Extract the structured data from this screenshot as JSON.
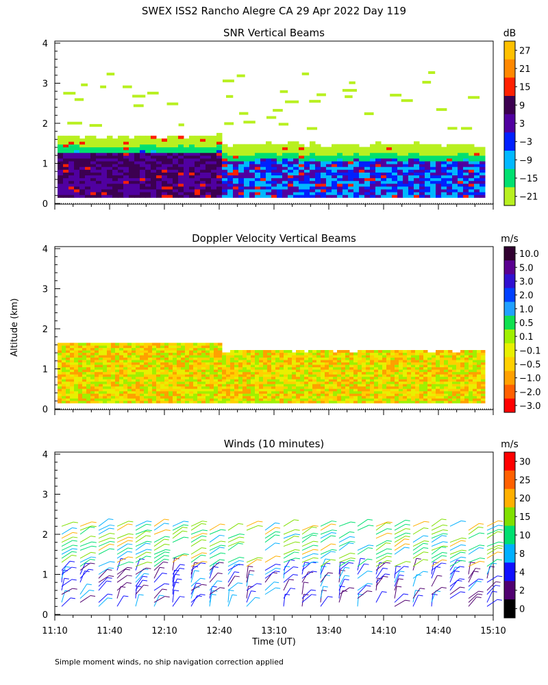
{
  "figure": {
    "title": "SWEX ISS2 Rancho Alegre CA  29 Apr 2022 Day 119",
    "ylabel": "Altitude (km)",
    "xlabel": "Time (UT)",
    "footnote": "Simple moment winds, no ship navigation correction applied"
  },
  "chart_data": [
    {
      "type": "heatmap",
      "title": "SNR Vertical Beams",
      "x_ticks": [
        "11:10",
        "11:40",
        "12:10",
        "12:40",
        "13:10",
        "13:40",
        "14:10",
        "14:40",
        "15:10"
      ],
      "y_ticks": [
        0,
        1,
        2,
        3,
        4
      ],
      "ylim": [
        0,
        4
      ],
      "colorbar": {
        "unit": "dB",
        "labels": [
          "27",
          "21",
          "15",
          "9",
          "3",
          "−3",
          "−9",
          "−15",
          "−21"
        ],
        "colors": [
          "#ffc000",
          "#ff8800",
          "#ff2000",
          "#3c0050",
          "#5000a0",
          "#0020ff",
          "#00b8ff",
          "#00e070",
          "#b8f020"
        ]
      }
    },
    {
      "type": "heatmap",
      "title": "Doppler Velocity Vertical Beams",
      "x_ticks": [
        "11:10",
        "11:40",
        "12:10",
        "12:40",
        "13:10",
        "13:40",
        "14:10",
        "14:40",
        "15:10"
      ],
      "y_ticks": [
        0,
        1,
        2,
        3,
        4
      ],
      "ylim": [
        0,
        4
      ],
      "colorbar": {
        "unit": "m/s",
        "labels": [
          "10.0",
          "5.0",
          "3.0",
          "2.0",
          "1.0",
          "0.5",
          "0.1",
          "−0.1",
          "−0.5",
          "−1.0",
          "−2.0",
          "−3.0"
        ],
        "colors": [
          "#300030",
          "#5a0090",
          "#3010d0",
          "#0040ff",
          "#20a0ff",
          "#10e050",
          "#a0f000",
          "#e8f000",
          "#ffd000",
          "#ffa000",
          "#ff6000",
          "#ff0000"
        ]
      }
    },
    {
      "type": "barbs",
      "title": "Winds (10 minutes)",
      "x_ticks": [
        "11:10",
        "11:40",
        "12:10",
        "12:40",
        "13:10",
        "13:40",
        "14:10",
        "14:40",
        "15:10"
      ],
      "y_ticks": [
        0,
        1,
        2,
        3,
        4
      ],
      "ylim": [
        0,
        4
      ],
      "colorbar": {
        "unit": "m/s",
        "labels": [
          "30",
          "25",
          "20",
          "15",
          "10",
          "8",
          "4",
          "2",
          "0"
        ],
        "colors": [
          "#ff0000",
          "#ff6000",
          "#ffb000",
          "#80e000",
          "#00e070",
          "#00b0ff",
          "#1010ff",
          "#500070",
          "#000000"
        ]
      }
    }
  ]
}
